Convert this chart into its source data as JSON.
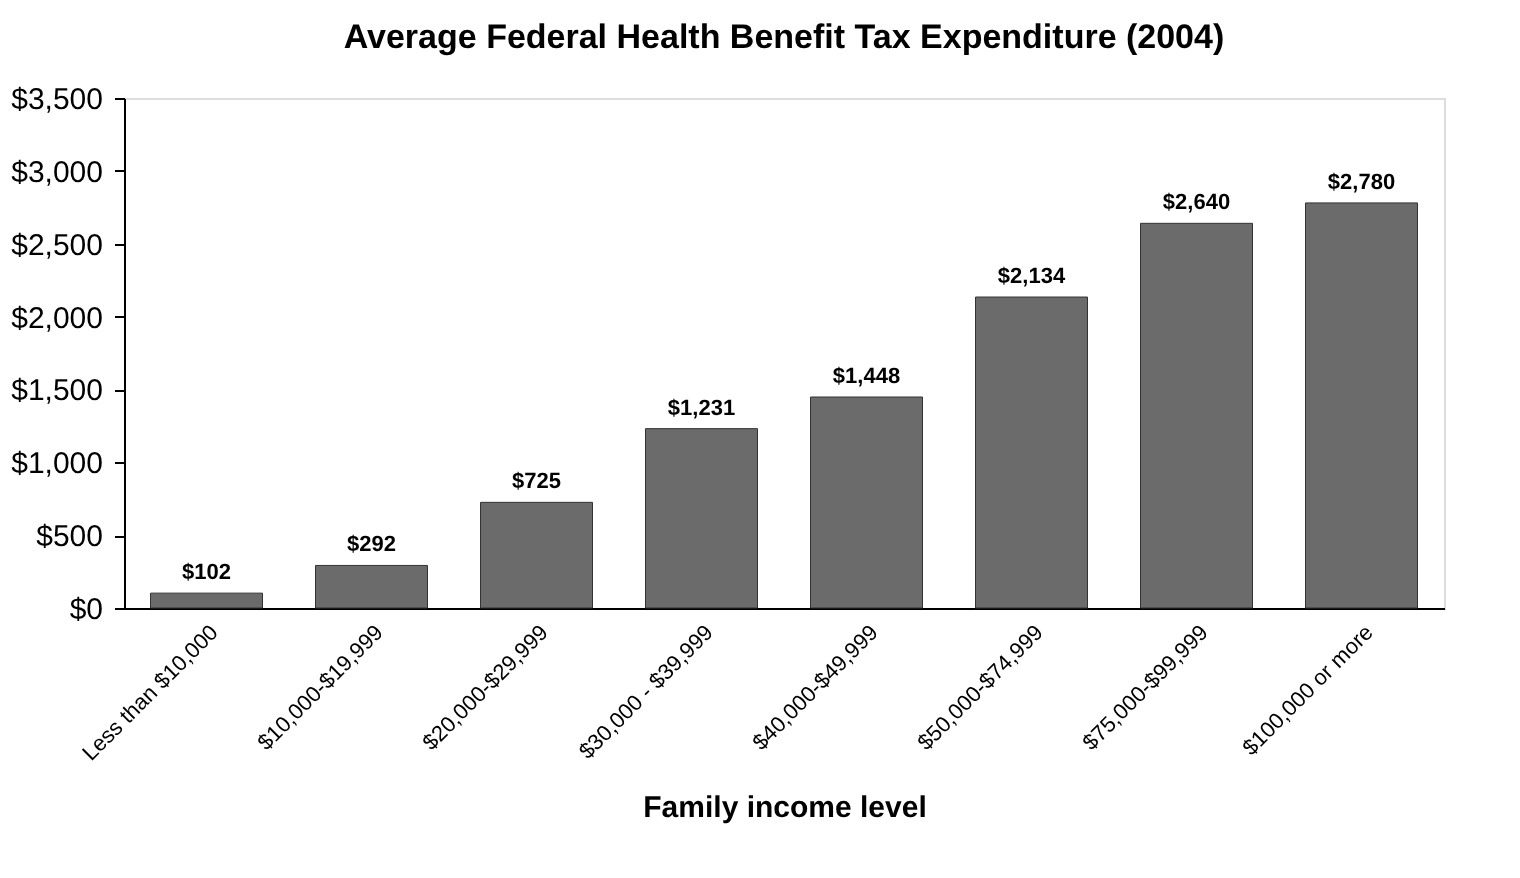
{
  "chart_data": {
    "type": "bar",
    "title": "Average Federal Health Benefit Tax Expenditure (2004)",
    "xlabel": "Family income level",
    "categories": [
      "Less than $10,000",
      "$10,000-$19,999",
      "$20,000-$29,999",
      "$30,000 - $39,999",
      "$40,000-$49,999",
      "$50,000-$74,999",
      "$75,000-$99,999",
      "$100,000 or more"
    ],
    "values": [
      102,
      292,
      725,
      1231,
      1448,
      2134,
      2640,
      2780
    ],
    "value_labels": [
      "$102",
      "$292",
      "$725",
      "$1,231",
      "$1,448",
      "$2,134",
      "$2,640",
      "$2,780"
    ],
    "color": "#6b6b6b",
    "ylim": [
      0,
      3500
    ],
    "yticks": [
      {
        "value": 0,
        "label": "$0"
      },
      {
        "value": 500,
        "label": "$500"
      },
      {
        "value": 1000,
        "label": "$1,000"
      },
      {
        "value": 1500,
        "label": "$1,500"
      },
      {
        "value": 2000,
        "label": "$2,000"
      },
      {
        "value": 2500,
        "label": "$2,500"
      },
      {
        "value": 3000,
        "label": "$3,000"
      },
      {
        "value": 3500,
        "label": "$3,500"
      }
    ],
    "grid": false
  }
}
